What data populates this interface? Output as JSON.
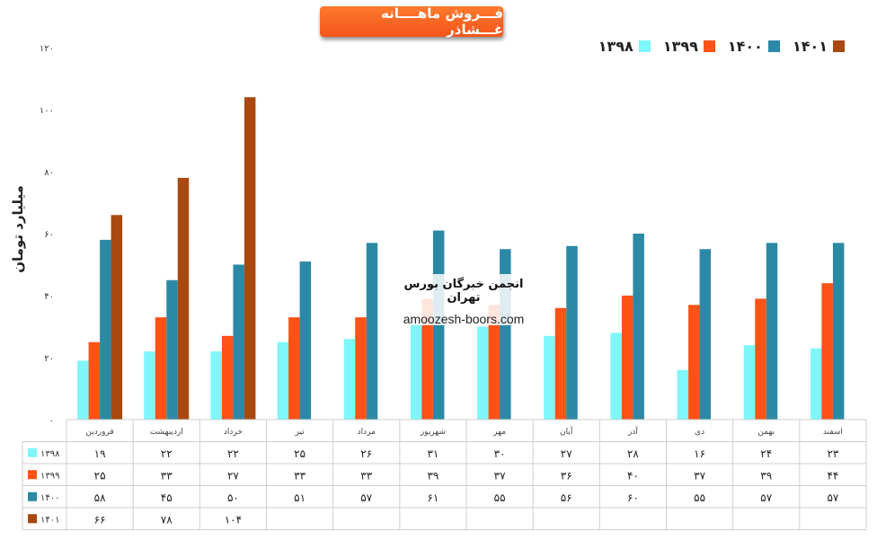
{
  "title": "فـــروش ماهــــانه غـــشاذر",
  "ylabel": "میلیارد تومان",
  "watermark": {
    "line1": "انجمن خبرگان بورس تهران",
    "line2": "amoozesh-boors.com"
  },
  "colors": {
    "s1398": "#7ff6fa",
    "s1399": "#fe5217",
    "s1400": "#2c89a6",
    "s1401": "#a9490f"
  },
  "chart_data": {
    "type": "bar",
    "ylim": [
      0,
      120
    ],
    "yticks": [
      0,
      20,
      40,
      60,
      80,
      100,
      120
    ],
    "ytick_labels": [
      "۰",
      "۲۰",
      "۴۰",
      "۶۰",
      "۸۰",
      "۱۰۰",
      "۱۲۰"
    ],
    "legend_position": "top-right",
    "grid": false,
    "categories": [
      "فروردین",
      "اردیبهشت",
      "خرداد",
      "تیر",
      "مرداد",
      "شهریور",
      "مهر",
      "آبان",
      "آذر",
      "دی",
      "بهمن",
      "اسفند"
    ],
    "series": [
      {
        "name": "۱۳۹۸",
        "key": "s1398",
        "values": [
          19,
          22,
          22,
          25,
          26,
          31,
          30,
          27,
          28,
          16,
          24,
          23
        ],
        "labels": [
          "۱۹",
          "۲۲",
          "۲۲",
          "۲۵",
          "۲۶",
          "۳۱",
          "۳۰",
          "۲۷",
          "۲۸",
          "۱۶",
          "۲۴",
          "۲۳"
        ]
      },
      {
        "name": "۱۳۹۹",
        "key": "s1399",
        "values": [
          25,
          33,
          27,
          33,
          33,
          39,
          37,
          36,
          40,
          37,
          39,
          44
        ],
        "labels": [
          "۲۵",
          "۳۳",
          "۲۷",
          "۳۳",
          "۳۳",
          "۳۹",
          "۳۷",
          "۳۶",
          "۴۰",
          "۳۷",
          "۳۹",
          "۴۴"
        ]
      },
      {
        "name": "۱۴۰۰",
        "key": "s1400",
        "values": [
          58,
          45,
          50,
          51,
          57,
          61,
          55,
          56,
          60,
          55,
          57,
          57
        ],
        "labels": [
          "۵۸",
          "۴۵",
          "۵۰",
          "۵۱",
          "۵۷",
          "۶۱",
          "۵۵",
          "۵۶",
          "۶۰",
          "۵۵",
          "۵۷",
          "۵۷"
        ]
      },
      {
        "name": "۱۴۰۱",
        "key": "s1401",
        "values": [
          66,
          78,
          104,
          null,
          null,
          null,
          null,
          null,
          null,
          null,
          null,
          null
        ],
        "labels": [
          "۶۶",
          "۷۸",
          "۱۰۴",
          "",
          "",
          "",
          "",
          "",
          "",
          "",
          "",
          ""
        ]
      }
    ]
  }
}
